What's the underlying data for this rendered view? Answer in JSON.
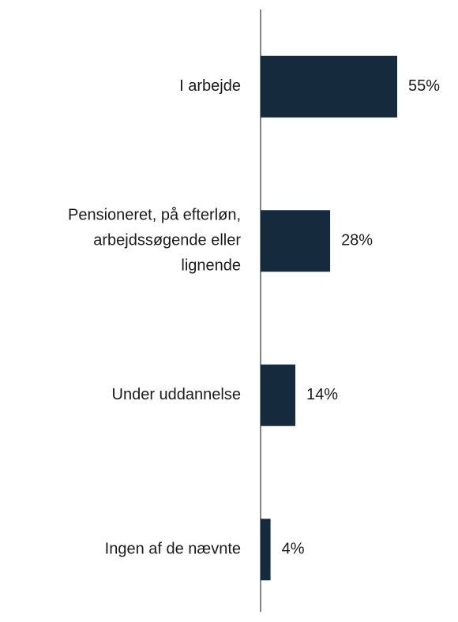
{
  "chart_data": {
    "type": "bar",
    "orientation": "horizontal",
    "categories": [
      "I arbejde",
      "Pensioneret, på efterløn,\narbejdssøgende eller\nlignende",
      "Under uddannelse",
      "Ingen af de nævnte"
    ],
    "values": [
      55,
      28,
      14,
      4
    ],
    "value_labels": [
      "55%",
      "28%",
      "14%",
      "4%"
    ],
    "color": "#152a3c"
  }
}
